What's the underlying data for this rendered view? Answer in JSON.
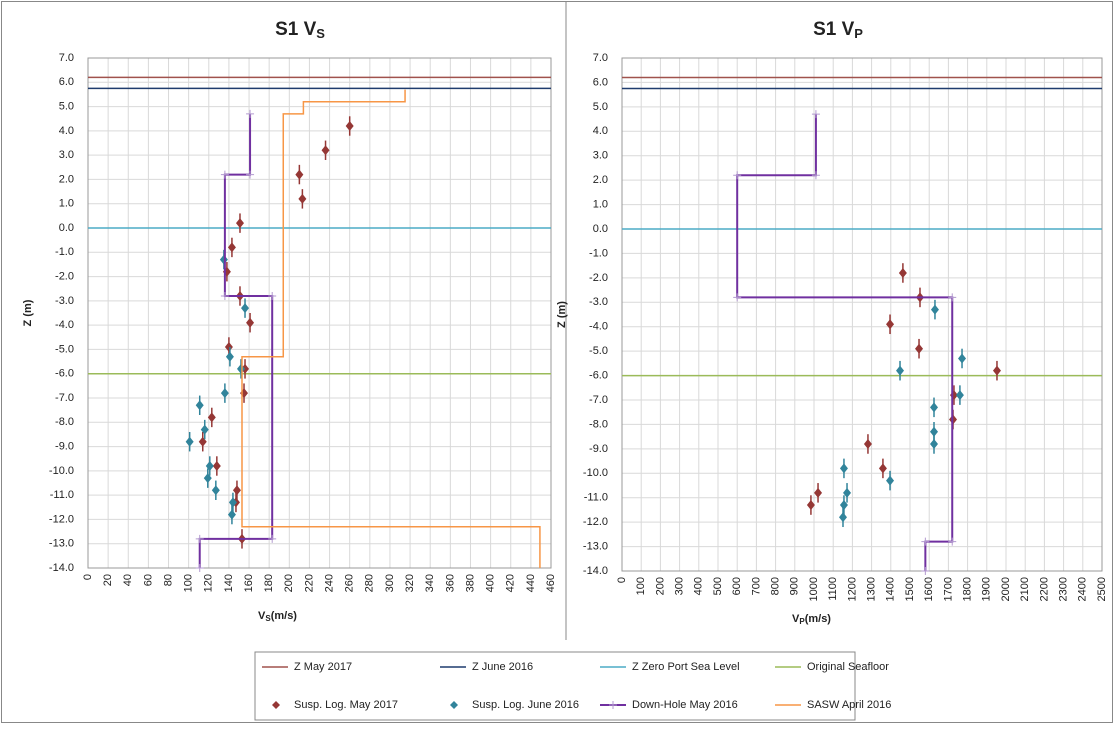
{
  "chart_data": [
    {
      "type": "scatter",
      "title": [
        "S1 V",
        "S"
      ],
      "xlabel": [
        "V",
        "S",
        "(m/s)"
      ],
      "ylabel": "Z (m)",
      "xlim": [
        0,
        460
      ],
      "xticks": [
        0,
        20,
        40,
        60,
        80,
        100,
        120,
        140,
        160,
        180,
        200,
        220,
        240,
        260,
        280,
        300,
        320,
        340,
        360,
        380,
        400,
        420,
        440,
        460
      ],
      "ylim": [
        -14,
        7
      ],
      "yticks": [
        {
          "value": 7,
          "label": "7.0"
        },
        {
          "value": 6,
          "label": "6.0"
        },
        {
          "value": 5,
          "label": "5.0"
        },
        {
          "value": 4,
          "label": "4.0"
        },
        {
          "value": 3,
          "label": "3.0"
        },
        {
          "value": 2,
          "label": "2.0"
        },
        {
          "value": 1,
          "label": "1.0"
        },
        {
          "value": 0,
          "label": "0.0"
        },
        {
          "value": -1,
          "label": "-1.0"
        },
        {
          "value": -2,
          "label": "-2.0"
        },
        {
          "value": -3,
          "label": "-3.0"
        },
        {
          "value": -4,
          "label": "-4.0"
        },
        {
          "value": -5,
          "label": "-5.0"
        },
        {
          "value": -6,
          "label": "-6.0"
        },
        {
          "value": -7,
          "label": "-7.0"
        },
        {
          "value": -8,
          "label": "-8.0"
        },
        {
          "value": -9,
          "label": "-9.0"
        },
        {
          "value": -10,
          "label": "-10.0"
        },
        {
          "value": -11,
          "label": "-11.0"
        },
        {
          "value": -12,
          "label": "-12.0"
        },
        {
          "value": -13,
          "label": "-13.0"
        },
        {
          "value": -14,
          "label": "-14.0"
        }
      ],
      "grid": true,
      "series": [
        {
          "name": "Z May 2017",
          "color": "#a0524d",
          "style": "line",
          "x": [
            0,
            460
          ],
          "values": [
            6.2,
            6.2
          ]
        },
        {
          "name": "Z June 2016",
          "color": "#1f3c6e",
          "style": "line",
          "x": [
            0,
            460
          ],
          "values": [
            5.75,
            5.75
          ]
        },
        {
          "name": "Z Zero Port Sea Level",
          "color": "#4bacc6",
          "style": "line",
          "x": [
            0,
            460
          ],
          "values": [
            0,
            0
          ]
        },
        {
          "name": "Original Seafloor",
          "color": "#9bbb59",
          "style": "line",
          "x": [
            0,
            460
          ],
          "values": [
            -6,
            -6
          ]
        },
        {
          "name": "Susp. Log. May 2017",
          "color": "#953735",
          "style": "marker",
          "error": 0.4,
          "x": [
            260,
            236,
            210,
            213,
            151,
            143,
            138,
            151,
            161,
            140,
            156,
            155,
            123,
            114,
            128,
            148,
            147,
            153
          ],
          "values": [
            4.2,
            3.2,
            2.2,
            1.2,
            0.2,
            -0.8,
            -1.8,
            -2.8,
            -3.9,
            -4.9,
            -5.8,
            -6.8,
            -7.8,
            -8.8,
            -9.8,
            -10.8,
            -11.3,
            -12.8
          ]
        },
        {
          "name": "Susp. Log. June 2016",
          "color": "#31849b",
          "style": "marker",
          "error": 0.4,
          "x": [
            135,
            156,
            141,
            152,
            136,
            111,
            116,
            101,
            121,
            119,
            127,
            144,
            143
          ],
          "values": [
            -1.3,
            -3.3,
            -5.3,
            -5.8,
            -6.8,
            -7.3,
            -8.3,
            -8.8,
            -9.8,
            -10.3,
            -10.8,
            -11.3,
            -11.8
          ]
        },
        {
          "name": "Down-Hole May 2016",
          "color": "#7030a0",
          "style": "step",
          "x": [
            161,
            161,
            136,
            136,
            183,
            183,
            111,
            111
          ],
          "values": [
            4.7,
            2.2,
            2.2,
            -2.8,
            -2.8,
            -12.8,
            -12.8,
            -14
          ]
        },
        {
          "name": "SASW April 2016",
          "color": "#f79646",
          "style": "line",
          "x": [
            315,
            315,
            214,
            214,
            194,
            194,
            153,
            153,
            449,
            449
          ],
          "values": [
            5.7,
            5.2,
            5.2,
            4.7,
            4.7,
            -5.3,
            -5.3,
            -12.3,
            -12.3,
            -14
          ]
        }
      ]
    },
    {
      "type": "scatter",
      "title": [
        "S1 V",
        "P"
      ],
      "xlabel": [
        "V",
        "P",
        "(m/s)"
      ],
      "ylabel": "Z (m)",
      "xlim": [
        0,
        2500
      ],
      "xticks": [
        0,
        100,
        200,
        300,
        400,
        500,
        600,
        700,
        800,
        900,
        1000,
        1100,
        1200,
        1300,
        1400,
        1500,
        1600,
        1700,
        1800,
        1900,
        2000,
        2100,
        2200,
        2300,
        2400,
        2500
      ],
      "ylim": [
        -14,
        7
      ],
      "yticks": [
        {
          "value": 7,
          "label": "7.0"
        },
        {
          "value": 6,
          "label": "6.0"
        },
        {
          "value": 5,
          "label": "5.0"
        },
        {
          "value": 4,
          "label": "4.0"
        },
        {
          "value": 3,
          "label": "3.0"
        },
        {
          "value": 2,
          "label": "2.0"
        },
        {
          "value": 1,
          "label": "1.0"
        },
        {
          "value": 0,
          "label": "0.0"
        },
        {
          "value": -1,
          "label": "-1.0"
        },
        {
          "value": -2,
          "label": "-2.0"
        },
        {
          "value": -3,
          "label": "-3.0"
        },
        {
          "value": -4,
          "label": "-4.0"
        },
        {
          "value": -5,
          "label": "-5.0"
        },
        {
          "value": -6,
          "label": "-6.0"
        },
        {
          "value": -7,
          "label": "-7.0"
        },
        {
          "value": -8,
          "label": "-8.0"
        },
        {
          "value": -9,
          "label": "-9.0"
        },
        {
          "value": -10,
          "label": "-10.0"
        },
        {
          "value": -11,
          "label": "-11.0"
        },
        {
          "value": -12,
          "label": "-12.0"
        },
        {
          "value": -13,
          "label": "-13.0"
        },
        {
          "value": -14,
          "label": "-14.0"
        }
      ],
      "grid": true,
      "series": [
        {
          "color": "#a0524d",
          "style": "line",
          "x": [
            0,
            2500
          ],
          "values": [
            6.2,
            6.2
          ]
        },
        {
          "color": "#1f3c6e",
          "style": "line",
          "x": [
            0,
            2500
          ],
          "values": [
            5.75,
            5.75
          ]
        },
        {
          "color": "#4bacc6",
          "style": "line",
          "x": [
            0,
            2500
          ],
          "values": [
            0,
            0
          ]
        },
        {
          "color": "#9bbb59",
          "style": "line",
          "x": [
            0,
            2500
          ],
          "values": [
            -6,
            -6
          ]
        },
        {
          "color": "#953735",
          "style": "marker",
          "error": 0.4,
          "x": [
            1463,
            1552,
            1396,
            1547,
            1953,
            1729,
            1724,
            1281,
            1359,
            1021,
            984
          ],
          "values": [
            -1.8,
            -2.8,
            -3.9,
            -4.9,
            -5.8,
            -6.8,
            -7.8,
            -8.8,
            -9.8,
            -10.8,
            -11.3
          ]
        },
        {
          "color": "#31849b",
          "style": "marker",
          "error": 0.4,
          "x": [
            1630,
            1771,
            1448,
            1760,
            1625,
            1625,
            1625,
            1156,
            1396,
            1172,
            1156,
            1151
          ],
          "values": [
            -3.3,
            -5.3,
            -5.8,
            -6.8,
            -7.3,
            -8.3,
            -8.8,
            -9.8,
            -10.3,
            -10.8,
            -11.3,
            -11.8
          ]
        },
        {
          "color": "#7030a0",
          "style": "step",
          "x": [
            1010,
            1010,
            600,
            600,
            1720,
            1720,
            1580,
            1580
          ],
          "values": [
            4.7,
            2.2,
            2.2,
            -2.8,
            -2.8,
            -12.8,
            -12.8,
            -14
          ]
        }
      ]
    }
  ]
}
